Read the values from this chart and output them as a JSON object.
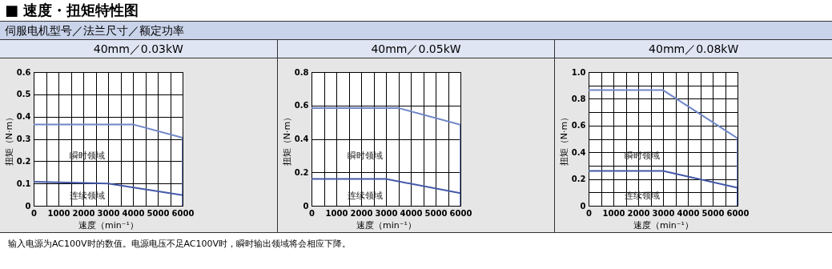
{
  "chart_data": [
    {
      "type": "line",
      "title": "40mm／0.03kW",
      "xlabel": "速度（min⁻¹）",
      "ylabel": "扭矩（N·m）",
      "annotations": [
        "■ 速度・扭矩特性图",
        "伺服电机型号／法兰尺寸／额定功率",
        "输入电源为AC100V时的数值。电源电压不足AC100V时，瞬时输出领域将会相应下降。",
        "瞬时领域",
        "连续领域"
      ],
      "series": [
        {
          "color": "#6f86c8",
          "x": [
            0,
            4000,
            6000,
            6000
          ],
          "values": [
            0.365,
            0.365,
            0.305,
            0
          ]
        },
        {
          "color": "#4359a8",
          "x": [
            0,
            3000,
            6000
          ],
          "values": [
            0.108,
            0.1,
            0.048
          ]
        }
      ],
      "xlim": [
        0,
        6000
      ],
      "xticks": [
        0,
        {
          "value": 500,
          "label": null
        },
        1000,
        {
          "value": 1500,
          "label": null
        },
        2000,
        {
          "value": 2500,
          "label": null
        },
        3000,
        {
          "value": 3500,
          "label": null
        },
        4000,
        {
          "value": 4500,
          "label": null
        },
        5000,
        {
          "value": 5500,
          "label": null
        },
        6000
      ],
      "ylim": [
        0,
        0.6
      ],
      "yticks": [
        0,
        0.1,
        0.2,
        0.3,
        0.4,
        0.5,
        0.6
      ],
      "grid": true
    },
    {
      "type": "line",
      "title": "40mm／0.05kW",
      "xlabel": "速度（min⁻¹）",
      "ylabel": "扭矩（N·m）",
      "annotations": [
        "瞬时领域",
        "连续领域"
      ],
      "series": [
        {
          "color": "#6f86c8",
          "x": [
            0,
            3500,
            6000,
            6000
          ],
          "values": [
            0.585,
            0.585,
            0.485,
            0
          ]
        },
        {
          "color": "#4359a8",
          "x": [
            0,
            3000,
            6000
          ],
          "values": [
            0.16,
            0.16,
            0.075
          ]
        }
      ],
      "xlim": [
        0,
        6000
      ],
      "xticks": [
        0,
        {
          "value": 500,
          "label": null
        },
        1000,
        {
          "value": 1500,
          "label": null
        },
        2000,
        {
          "value": 2500,
          "label": null
        },
        3000,
        {
          "value": 3500,
          "label": null
        },
        4000,
        {
          "value": 4500,
          "label": null
        },
        5000,
        {
          "value": 5500,
          "label": null
        },
        6000
      ],
      "ylim": [
        0,
        0.8
      ],
      "yticks": [
        0,
        0.2,
        0.4,
        0.6,
        0.8
      ],
      "grid": true
    },
    {
      "type": "line",
      "title": "40mm／0.08kW",
      "xlabel": "速度（min⁻¹）",
      "ylabel": "扭矩（N·m）",
      "annotations": [
        "瞬时领域",
        "连续领域"
      ],
      "series": [
        {
          "color": "#6f86c8",
          "x": [
            0,
            3000,
            6000,
            6000
          ],
          "values": [
            0.865,
            0.865,
            0.505,
            0
          ]
        },
        {
          "color": "#4359a8",
          "x": [
            0,
            3000,
            6000,
            6000
          ],
          "values": [
            0.26,
            0.26,
            0.135,
            0
          ]
        }
      ],
      "xlim": [
        0,
        6000
      ],
      "xticks": [
        0,
        {
          "value": 500,
          "label": null
        },
        1000,
        {
          "value": 1500,
          "label": null
        },
        2000,
        {
          "value": 2500,
          "label": null
        },
        3000,
        {
          "value": 3500,
          "label": null
        },
        4000,
        {
          "value": 4500,
          "label": null
        },
        5000,
        {
          "value": 5500,
          "label": null
        },
        6000
      ],
      "ylim": [
        0,
        1.0
      ],
      "yticks": [
        0,
        {
          "value": 0.1,
          "label": null
        },
        0.2,
        {
          "value": 0.3,
          "label": null
        },
        0.4,
        {
          "value": 0.5,
          "label": null
        },
        0.6,
        {
          "value": 0.7,
          "label": null
        },
        0.8,
        {
          "value": 0.9,
          "label": null
        },
        {
          "value": 1.0,
          "label": "1.0"
        }
      ],
      "grid": true
    }
  ]
}
